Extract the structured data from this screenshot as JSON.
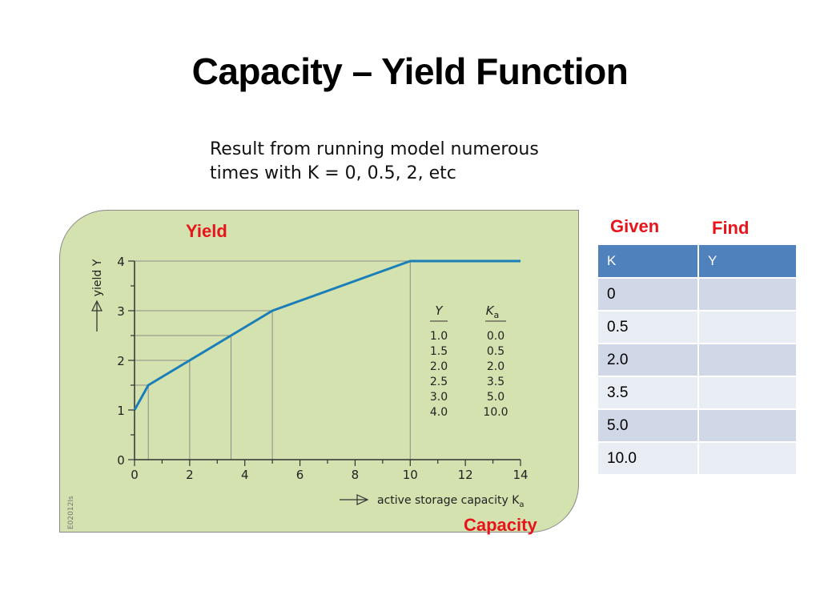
{
  "slide": {
    "title": "Capacity – Yield Function",
    "subtitle_lines": [
      "Result from running model numerous",
      "times with K = 0, 0.5, 2, etc"
    ],
    "labels": {
      "yield": "Yield",
      "given": "Given",
      "find": "Find",
      "capacity": "Capacity"
    }
  },
  "table": {
    "headers": [
      "K",
      "Y"
    ],
    "rows": [
      [
        "0",
        ""
      ],
      [
        "0.5",
        ""
      ],
      [
        "2.0",
        ""
      ],
      [
        "3.5",
        ""
      ],
      [
        "5.0",
        ""
      ],
      [
        "10.0",
        ""
      ]
    ]
  },
  "colors": {
    "panel": "#d3e2ae",
    "line": "#1a7fb8",
    "red": "#e8141b",
    "table_header": "#4f81bd"
  },
  "chart_data": {
    "type": "line",
    "ylabel": "yield Y",
    "xlabel": "active storage capacity K",
    "xlabel_subscript": "a",
    "side_code": "E02012Is",
    "xlim": [
      0,
      14
    ],
    "ylim": [
      0,
      4
    ],
    "x_ticks": [
      "0",
      "2",
      "4",
      "6",
      "8",
      "10",
      "12",
      "14"
    ],
    "y_ticks": [
      "0",
      "1",
      "2",
      "3",
      "4"
    ],
    "series": [
      {
        "x": [
          0,
          0.5,
          2,
          3.5,
          5,
          10,
          14
        ],
        "y": [
          1,
          1.5,
          2,
          2.5,
          3,
          4,
          4
        ]
      }
    ],
    "guides": [
      {
        "x": 0.5,
        "y": 1.5
      },
      {
        "x": 2,
        "y": 2
      },
      {
        "x": 3.5,
        "y": 2.5
      },
      {
        "x": 5,
        "y": 3
      },
      {
        "x": 10,
        "y": 4
      }
    ],
    "inset_table": {
      "col_y": "Y",
      "col_k": "K",
      "col_k_subscript": "a",
      "rows": [
        [
          "1.0",
          "0.0"
        ],
        [
          "1.5",
          "0.5"
        ],
        [
          "2.0",
          "2.0"
        ],
        [
          "2.5",
          "3.5"
        ],
        [
          "3.0",
          "5.0"
        ],
        [
          "4.0",
          "10.0"
        ]
      ]
    }
  }
}
